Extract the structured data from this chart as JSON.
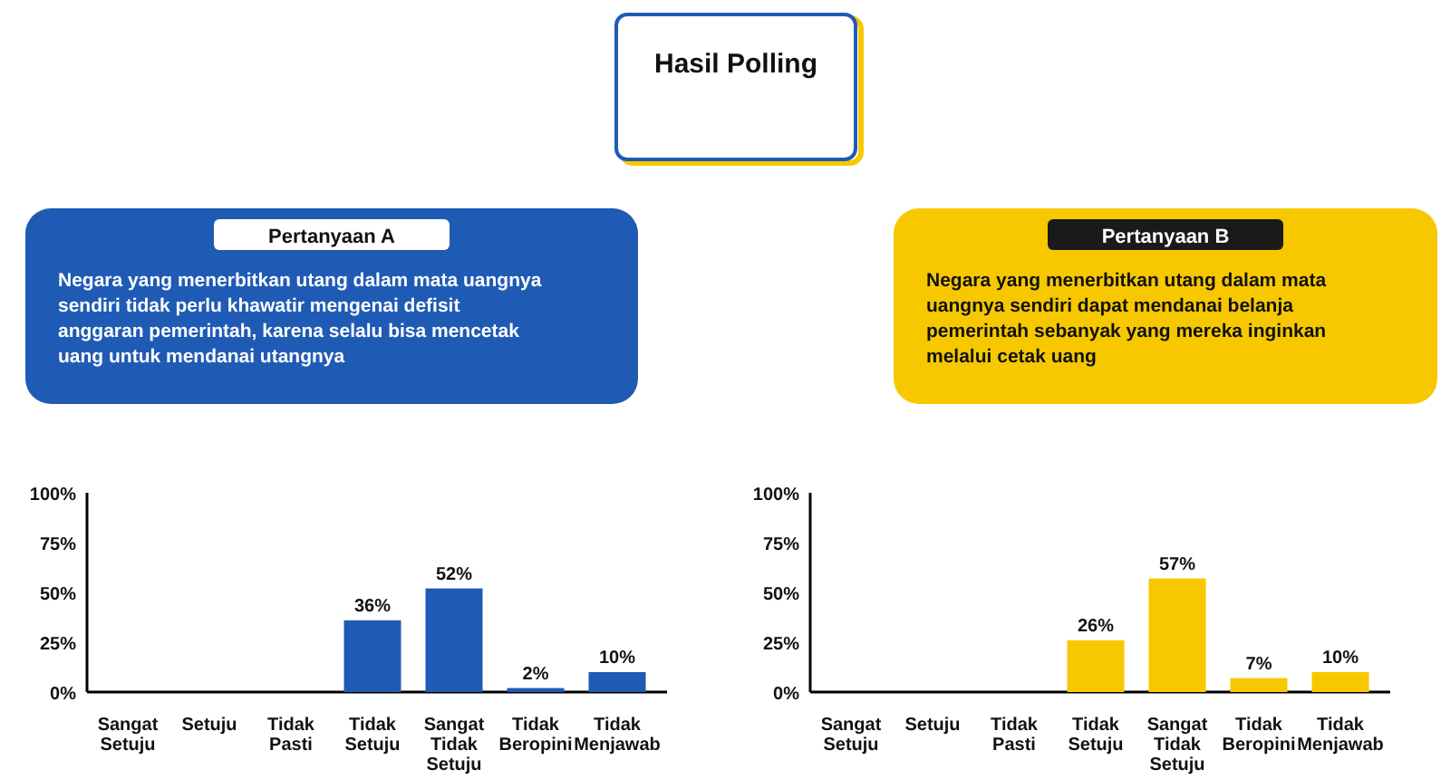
{
  "chart_data": [
    {
      "type": "other",
      "title": "Hasil Polling"
    },
    {
      "type": "bar",
      "title": "Pertanyaan A",
      "subtitle": "Negara yang menerbitkan  utang dalam mata uangnya sendiri tidak perlu khawatir mengenai defisit anggaran pemerintah, karena selalu bisa mencetak uang untuk mendanai utangnya",
      "categories": [
        "Sangat Setuju",
        "Setuju",
        "Tidak Pasti",
        "Tidak Setuju",
        "Sangat Tidak Setuju",
        "Tidak Beropini",
        "Tidak Menjawab"
      ],
      "values": [
        null,
        null,
        null,
        36,
        52,
        2,
        10
      ],
      "value_labels": [
        null,
        null,
        null,
        "36%",
        "52%",
        "2%",
        "10%"
      ],
      "color": "#1f5bb5",
      "ylim": [
        0,
        100
      ],
      "yticks": [
        {
          "value": 0,
          "label": "0%"
        },
        {
          "value": 25,
          "label": "25%"
        },
        {
          "value": 50,
          "label": "50%"
        },
        {
          "value": 75,
          "label": "75%"
        },
        {
          "value": 100,
          "label": "100%"
        }
      ],
      "grid": false
    },
    {
      "type": "bar",
      "title": "Pertanyaan B",
      "subtitle": "Negara yang menerbitkan utang dalam mata uangnya sendiri dapat mendanai belanja pemerintah sebanyak yang mereka inginkan melalui cetak uang",
      "categories": [
        "Sangat Setuju",
        "Setuju",
        "Tidak Pasti",
        "Tidak Setuju",
        "Sangat Tidak Setuju",
        "Tidak Beropini",
        "Tidak Menjawab"
      ],
      "values": [
        null,
        null,
        null,
        26,
        57,
        7,
        10
      ],
      "value_labels": [
        null,
        null,
        null,
        "26%",
        "57%",
        "7%",
        "10%"
      ],
      "color": "#f7c800",
      "ylim": [
        0,
        100
      ],
      "yticks": [
        {
          "value": 0,
          "label": "0%"
        },
        {
          "value": 25,
          "label": "25%"
        },
        {
          "value": 50,
          "label": "50%"
        },
        {
          "value": 75,
          "label": "75%"
        },
        {
          "value": 100,
          "label": "100%"
        }
      ],
      "grid": false
    }
  ]
}
